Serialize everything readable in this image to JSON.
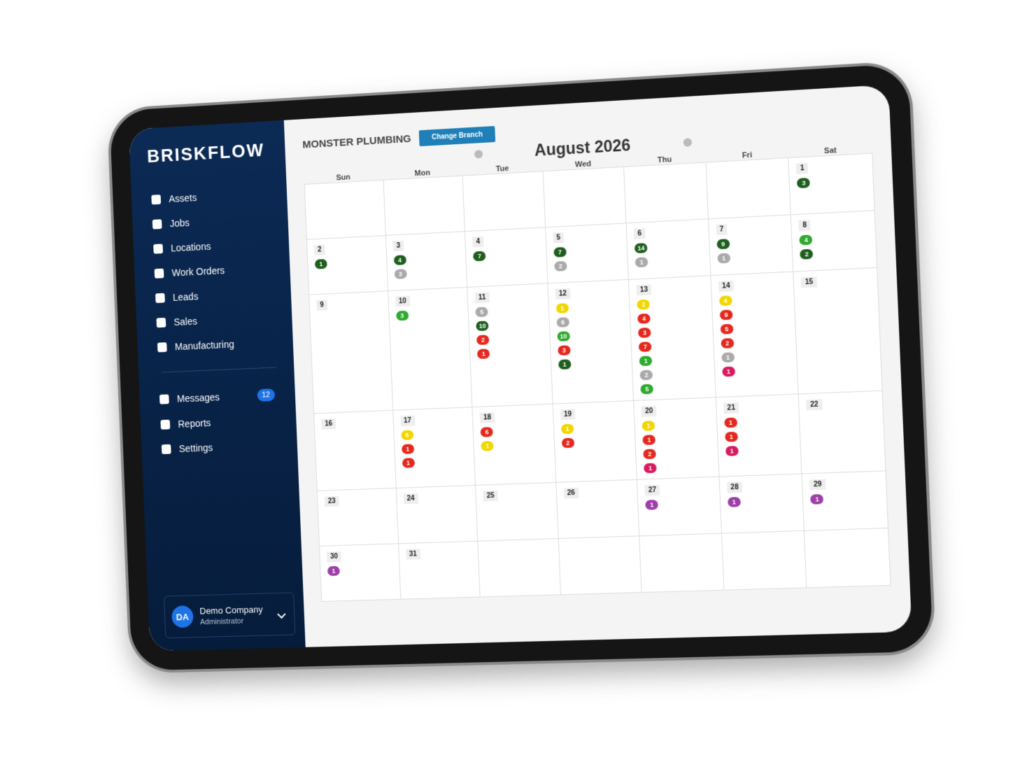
{
  "sidebar": {
    "logo": "BRISKFLOW",
    "nav": [
      {
        "label": "Assets"
      },
      {
        "label": "Jobs"
      },
      {
        "label": "Locations"
      },
      {
        "label": "Work Orders"
      },
      {
        "label": "Leads"
      },
      {
        "label": "Sales"
      },
      {
        "label": "Manufacturing"
      }
    ],
    "secondary_nav": [
      {
        "label": "Messages",
        "badge": 12
      },
      {
        "label": "Reports"
      },
      {
        "label": "Settings"
      }
    ],
    "user": {
      "initials": "DA",
      "name": "Demo Company",
      "role": "Administrator"
    }
  },
  "header": {
    "branch": "MONSTER PLUMBING",
    "button": "Change Branch"
  },
  "calendar": {
    "title": "August 2026",
    "weekdays": [
      "Sun",
      "Mon",
      "Tue",
      "Wed",
      "Thu",
      "Fri",
      "Sat"
    ],
    "weeks": [
      [
        null,
        null,
        null,
        null,
        null,
        null,
        {
          "day": 1,
          "events": [
            {
              "count": 3,
              "color": "#1e5e1e"
            }
          ]
        }
      ],
      [
        {
          "day": 2,
          "events": [
            {
              "count": 1,
              "color": "#1e5e1e"
            }
          ]
        },
        {
          "day": 3,
          "events": [
            {
              "count": 4,
              "color": "#1e5e1e"
            },
            {
              "count": 3,
              "color": "#aaaaaa"
            }
          ]
        },
        {
          "day": 4,
          "events": [
            {
              "count": 7,
              "color": "#1e5e1e"
            }
          ]
        },
        {
          "day": 5,
          "events": [
            {
              "count": 7,
              "color": "#1e5e1e"
            },
            {
              "count": 2,
              "color": "#aaaaaa"
            }
          ]
        },
        {
          "day": 6,
          "events": [
            {
              "count": 14,
              "color": "#1e5e1e"
            },
            {
              "count": 1,
              "color": "#aaaaaa"
            }
          ]
        },
        {
          "day": 7,
          "events": [
            {
              "count": 9,
              "color": "#1e5e1e"
            },
            {
              "count": 1,
              "color": "#aaaaaa"
            }
          ]
        },
        {
          "day": 8,
          "events": [
            {
              "count": 4,
              "color": "#2eaa2e"
            },
            {
              "count": 2,
              "color": "#1e5e1e"
            }
          ]
        }
      ],
      [
        {
          "day": 9,
          "events": []
        },
        {
          "day": 10,
          "events": [
            {
              "count": 3,
              "color": "#2eaa2e"
            }
          ]
        },
        {
          "day": 11,
          "events": [
            {
              "count": 5,
              "color": "#aaaaaa"
            },
            {
              "count": 10,
              "color": "#1e5e1e"
            },
            {
              "count": 2,
              "color": "#e5281e"
            },
            {
              "count": 1,
              "color": "#e5281e"
            }
          ]
        },
        {
          "day": 12,
          "events": [
            {
              "count": 1,
              "color": "#f2d600"
            },
            {
              "count": 6,
              "color": "#aaaaaa"
            },
            {
              "count": 10,
              "color": "#2eaa2e"
            },
            {
              "count": 3,
              "color": "#e5281e"
            },
            {
              "count": 1,
              "color": "#1e5e1e"
            }
          ]
        },
        {
          "day": 13,
          "events": [
            {
              "count": 2,
              "color": "#f2d600"
            },
            {
              "count": 4,
              "color": "#e5281e"
            },
            {
              "count": 3,
              "color": "#e5281e"
            },
            {
              "count": 7,
              "color": "#e5281e"
            },
            {
              "count": 1,
              "color": "#2eaa2e"
            },
            {
              "count": 2,
              "color": "#aaaaaa"
            },
            {
              "count": 5,
              "color": "#2eaa2e"
            }
          ]
        },
        {
          "day": 14,
          "events": [
            {
              "count": 4,
              "color": "#f2d600"
            },
            {
              "count": 9,
              "color": "#e5281e"
            },
            {
              "count": 5,
              "color": "#e5281e"
            },
            {
              "count": 2,
              "color": "#e5281e"
            },
            {
              "count": 1,
              "color": "#aaaaaa"
            },
            {
              "count": 1,
              "color": "#d81b60"
            }
          ]
        },
        {
          "day": 15,
          "events": []
        }
      ],
      [
        {
          "day": 16,
          "events": []
        },
        {
          "day": 17,
          "events": [
            {
              "count": 6,
              "color": "#f2d600"
            },
            {
              "count": 1,
              "color": "#e5281e"
            },
            {
              "count": 1,
              "color": "#e5281e"
            }
          ]
        },
        {
          "day": 18,
          "events": [
            {
              "count": 6,
              "color": "#e5281e"
            },
            {
              "count": 1,
              "color": "#f2d600"
            }
          ]
        },
        {
          "day": 19,
          "events": [
            {
              "count": 1,
              "color": "#f2d600"
            },
            {
              "count": 2,
              "color": "#e5281e"
            }
          ]
        },
        {
          "day": 20,
          "events": [
            {
              "count": 1,
              "color": "#f2d600"
            },
            {
              "count": 1,
              "color": "#e5281e"
            },
            {
              "count": 2,
              "color": "#e5281e"
            },
            {
              "count": 1,
              "color": "#d81b60"
            }
          ]
        },
        {
          "day": 21,
          "events": [
            {
              "count": 1,
              "color": "#e5281e"
            },
            {
              "count": 1,
              "color": "#e5281e"
            },
            {
              "count": 1,
              "color": "#d81b60"
            }
          ]
        },
        {
          "day": 22,
          "events": []
        }
      ],
      [
        {
          "day": 23,
          "events": []
        },
        {
          "day": 24,
          "events": []
        },
        {
          "day": 25,
          "events": []
        },
        {
          "day": 26,
          "events": []
        },
        {
          "day": 27,
          "events": [
            {
              "count": 1,
              "color": "#9c3fa8"
            }
          ]
        },
        {
          "day": 28,
          "events": [
            {
              "count": 1,
              "color": "#9c3fa8"
            }
          ]
        },
        {
          "day": 29,
          "events": [
            {
              "count": 1,
              "color": "#9c3fa8"
            }
          ]
        }
      ],
      [
        {
          "day": 30,
          "events": [
            {
              "count": 1,
              "color": "#9c3fa8"
            }
          ]
        },
        {
          "day": 31,
          "events": []
        },
        null,
        null,
        null,
        null,
        null
      ]
    ]
  }
}
